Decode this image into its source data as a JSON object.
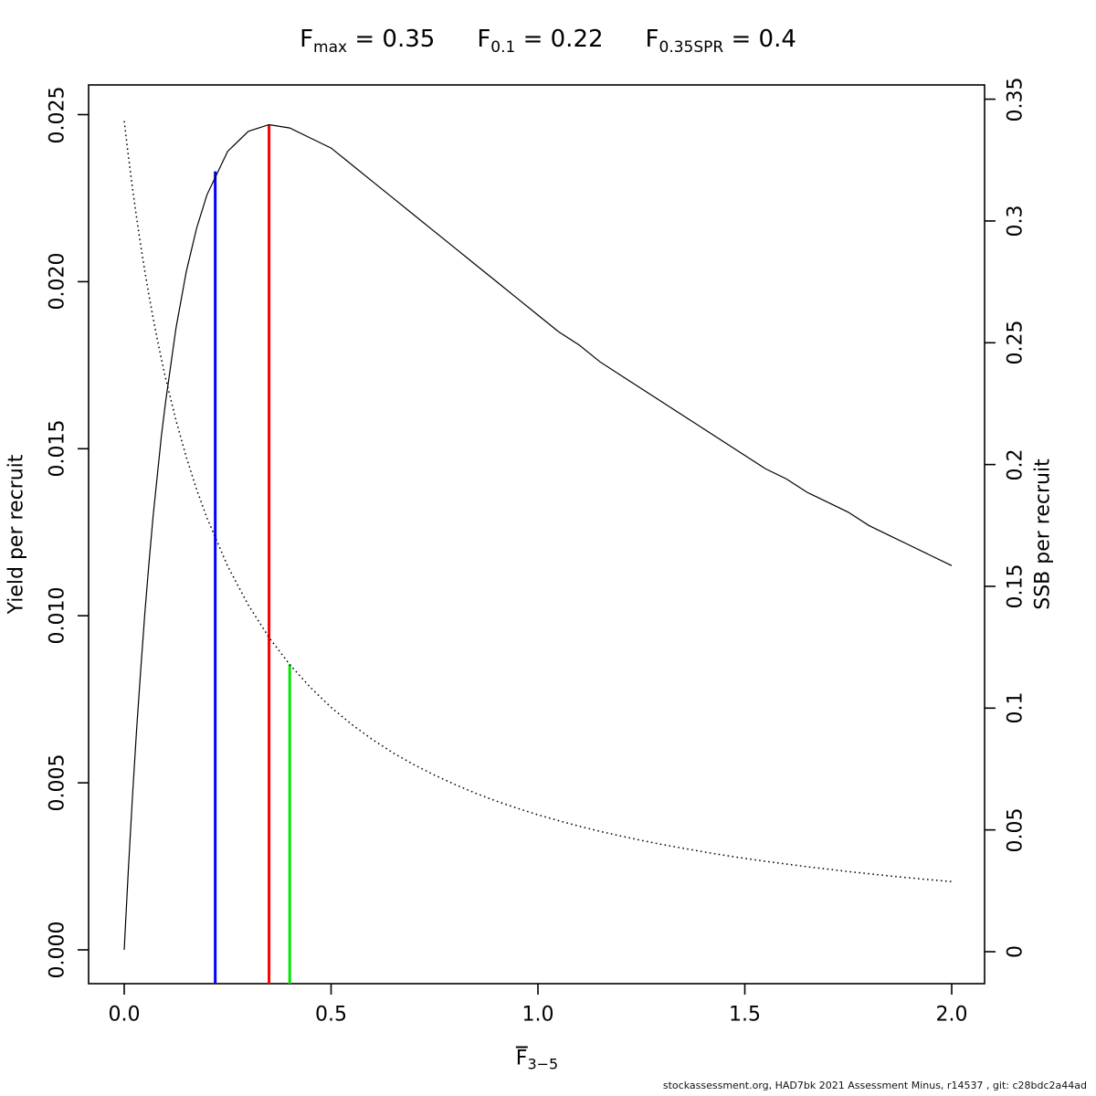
{
  "title": {
    "items": [
      {
        "base": "F",
        "sub": "max",
        "eq": " = 0.35"
      },
      {
        "base": "F",
        "sub": "0.1",
        "eq": " = 0.22"
      },
      {
        "base": "F",
        "sub": "0.35SPR",
        "eq": " = 0.4"
      }
    ]
  },
  "axes": {
    "x": {
      "label_base": "F",
      "label_sub": "3−5",
      "tick_labels": [
        "0.0",
        "0.5",
        "1.0",
        "1.5",
        "2.0"
      ],
      "tick_values": [
        0,
        0.5,
        1,
        1.5,
        2
      ]
    },
    "y_left": {
      "label": "Yield per recruit",
      "tick_labels": [
        "0.000",
        "0.005",
        "0.010",
        "0.015",
        "0.020",
        "0.025"
      ],
      "tick_values": [
        0,
        0.005,
        0.01,
        0.015,
        0.02,
        0.025
      ]
    },
    "y_right": {
      "label": "SSB per recruit",
      "tick_labels": [
        "0",
        "0.05",
        "0.1",
        "0.15",
        "0.2",
        "0.25",
        "0.3",
        "0.35"
      ],
      "tick_values": [
        0,
        0.05,
        0.1,
        0.15,
        0.2,
        0.25,
        0.3,
        0.35
      ]
    }
  },
  "footer": {
    "text": "stockassessment.org, HAD7bk 2021 Assessment Minus, r14537 , git: c28bdc2a44ad"
  },
  "chart_data": {
    "type": "line",
    "title": "Fmax = 0.35   F0.1 = 0.22   F0.35SPR = 0.4",
    "xlabel": "Fbar 3-5",
    "ylabel_left": "Yield per recruit",
    "ylabel_right": "SSB per recruit",
    "x_range": [
      0,
      2
    ],
    "y_left_range": [
      0,
      0.025
    ],
    "y_right_range": [
      0,
      0.35
    ],
    "grid": false,
    "legend": "none",
    "x": [
      0,
      0.01,
      0.02,
      0.03,
      0.04,
      0.05,
      0.06,
      0.07,
      0.08,
      0.09,
      0.1,
      0.125,
      0.15,
      0.175,
      0.2,
      0.25,
      0.3,
      0.35,
      0.4,
      0.45,
      0.5,
      0.55,
      0.6,
      0.65,
      0.7,
      0.75,
      0.8,
      0.85,
      0.9,
      0.95,
      1,
      1.05,
      1.1,
      1.15,
      1.2,
      1.25,
      1.3,
      1.35,
      1.4,
      1.45,
      1.5,
      1.55,
      1.6,
      1.65,
      1.7,
      1.75,
      1.8,
      1.85,
      1.9,
      1.95,
      2
    ],
    "series": [
      {
        "name": "yield-per-recruit",
        "axis": "left",
        "style": "solid",
        "color": "#000000",
        "y": [
          0,
          0.0024,
          0.0046,
          0.0066,
          0.0084,
          0.0101,
          0.0116,
          0.013,
          0.0142,
          0.0154,
          0.0164,
          0.0186,
          0.0203,
          0.0216,
          0.0226,
          0.0239,
          0.0245,
          0.0247,
          0.0246,
          0.0243,
          0.024,
          0.0235,
          0.023,
          0.0225,
          0.022,
          0.0215,
          0.021,
          0.0205,
          0.02,
          0.0195,
          0.019,
          0.0185,
          0.0181,
          0.0176,
          0.0172,
          0.0168,
          0.0164,
          0.016,
          0.0156,
          0.0152,
          0.0148,
          0.0144,
          0.0141,
          0.0137,
          0.0134,
          0.0131,
          0.0127,
          0.0124,
          0.0121,
          0.0118,
          0.0115
        ]
      },
      {
        "name": "ssb-per-recruit",
        "axis": "right",
        "style": "dotted",
        "color": "#000000",
        "y": [
          0.341,
          0.3267,
          0.3135,
          0.3012,
          0.2898,
          0.2792,
          0.2693,
          0.2601,
          0.2514,
          0.2432,
          0.2355,
          0.2182,
          0.2031,
          0.1898,
          0.1781,
          0.1583,
          0.1423,
          0.129,
          0.1179,
          0.1085,
          0.1003,
          0.0933,
          0.0871,
          0.0816,
          0.0768,
          0.0725,
          0.0686,
          0.065,
          0.0618,
          0.0589,
          0.0562,
          0.0538,
          0.0515,
          0.0494,
          0.0475,
          0.0457,
          0.044,
          0.0425,
          0.041,
          0.0396,
          0.0383,
          0.0371,
          0.036,
          0.0349,
          0.0339,
          0.0329,
          0.032,
          0.0311,
          0.0303,
          0.0295,
          0.0288
        ]
      }
    ],
    "reference_lines": [
      {
        "key": "f01",
        "label": "F0.1 = 0.22",
        "x": 0.22,
        "axis": "left",
        "top_value": 0.0233,
        "color": "#0000FF"
      },
      {
        "key": "fmax",
        "label": "Fmax = 0.35",
        "x": 0.35,
        "axis": "left",
        "top_value": 0.0247,
        "color": "#FF0000"
      },
      {
        "key": "f035spr",
        "label": "F0.35SPR = 0.4",
        "x": 0.4,
        "axis": "right",
        "top_value": 0.118,
        "color": "#00E600"
      }
    ]
  }
}
